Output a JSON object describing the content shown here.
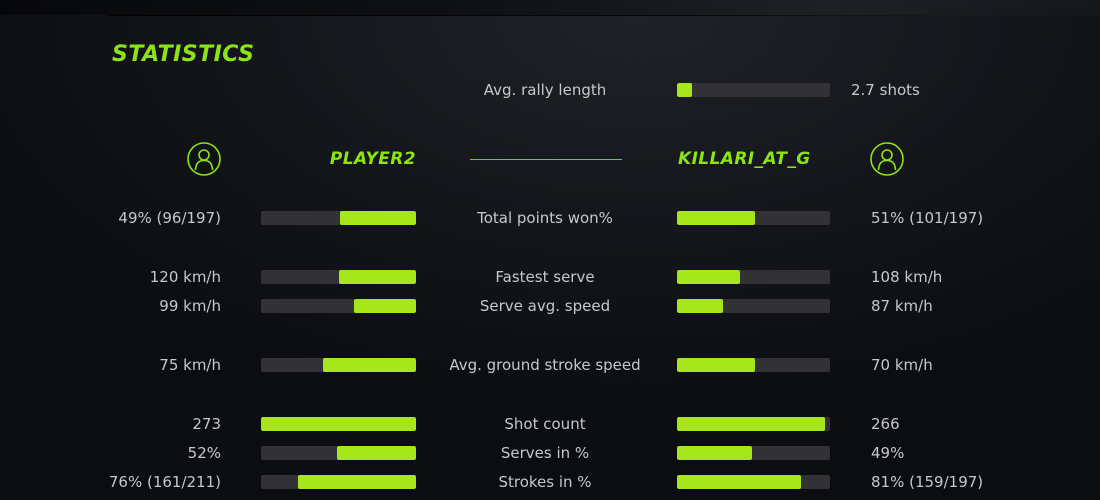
{
  "title": "STATISTICS",
  "colors": {
    "accent_text": "#8de414",
    "accent_bar": "#a6e61b",
    "bar_track": "#323236",
    "label_text": "#c6c9cb",
    "background": "#101318"
  },
  "rally": {
    "label": "Avg. rally length",
    "value": "2.7 shots",
    "fill_pct": 10
  },
  "players": {
    "left": {
      "name": "PLAYER2",
      "icon": "user-icon"
    },
    "right": {
      "name": "KILLARI_AT_G",
      "icon": "user-icon"
    }
  },
  "stats": [
    {
      "label": "Total points won%",
      "left_value": "49% (96/197)",
      "left_fill": 49,
      "right_value": "51% (101/197)",
      "right_fill": 51
    },
    {
      "label": "Fastest serve",
      "left_value": "120 km/h",
      "left_fill": 50,
      "right_value": "108 km/h",
      "right_fill": 41
    },
    {
      "label": "Serve avg. speed",
      "left_value": "99 km/h",
      "left_fill": 40,
      "right_value": "87 km/h",
      "right_fill": 30
    },
    {
      "label": "Avg. ground stroke speed",
      "left_value": "75 km/h",
      "left_fill": 60,
      "right_value": "70 km/h",
      "right_fill": 51
    },
    {
      "label": "Shot count",
      "left_value": "273",
      "left_fill": 100,
      "right_value": "266",
      "right_fill": 97
    },
    {
      "label": "Serves in %",
      "left_value": "52%",
      "left_fill": 51,
      "right_value": "49%",
      "right_fill": 49
    },
    {
      "label": "Strokes in %",
      "left_value": "76% (161/211)",
      "left_fill": 76,
      "right_value": "81% (159/197)",
      "right_fill": 81
    }
  ]
}
